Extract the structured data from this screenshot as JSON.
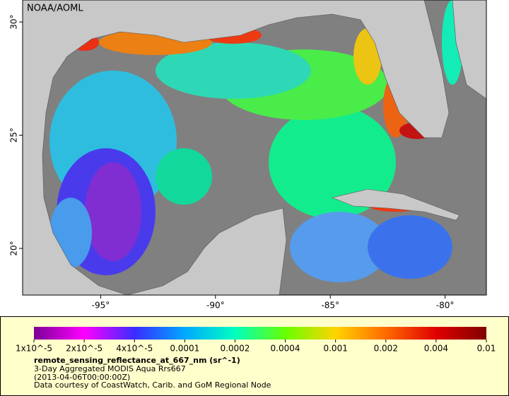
{
  "map": {
    "credit": "NOAA/AOML",
    "xlim": [
      -98.4,
      -78.2
    ],
    "ylim": [
      17.94,
      30.97
    ],
    "xticks": [
      {
        "value": -95,
        "label": "-95°"
      },
      {
        "value": -90,
        "label": "-90°"
      },
      {
        "value": -85,
        "label": "-85°"
      },
      {
        "value": -80,
        "label": "-80°"
      }
    ],
    "yticks": [
      {
        "value": 20,
        "label": "20°"
      },
      {
        "value": 25,
        "label": "25°"
      },
      {
        "value": 30,
        "label": "30°"
      }
    ]
  },
  "legend": {
    "colorbar": {
      "colors": [
        "#7a0096",
        "#ff00ff",
        "#3a2cff",
        "#00a8ff",
        "#00ffc0",
        "#66ff00",
        "#ffd400",
        "#ff6a00",
        "#e00000",
        "#800000"
      ],
      "ticks": [
        {
          "value": 1e-05,
          "label": "1x10^-5"
        },
        {
          "value": 2e-05,
          "label": "2x10^-5"
        },
        {
          "value": 4e-05,
          "label": "4x10^-5"
        },
        0.0001,
        0.0002,
        0.0004,
        0.001,
        0.002,
        0.004,
        0.01
      ]
    },
    "title": "remote_sensing_reflectance_at_667_nm (sr^-1)",
    "lines": [
      "3-Day Aggregated MODIS Aqua Rrs667",
      "(2013-04-06T00:00:00Z)",
      "Data courtesy of CoastWatch, Carib. and GoM Regional Node"
    ]
  }
}
